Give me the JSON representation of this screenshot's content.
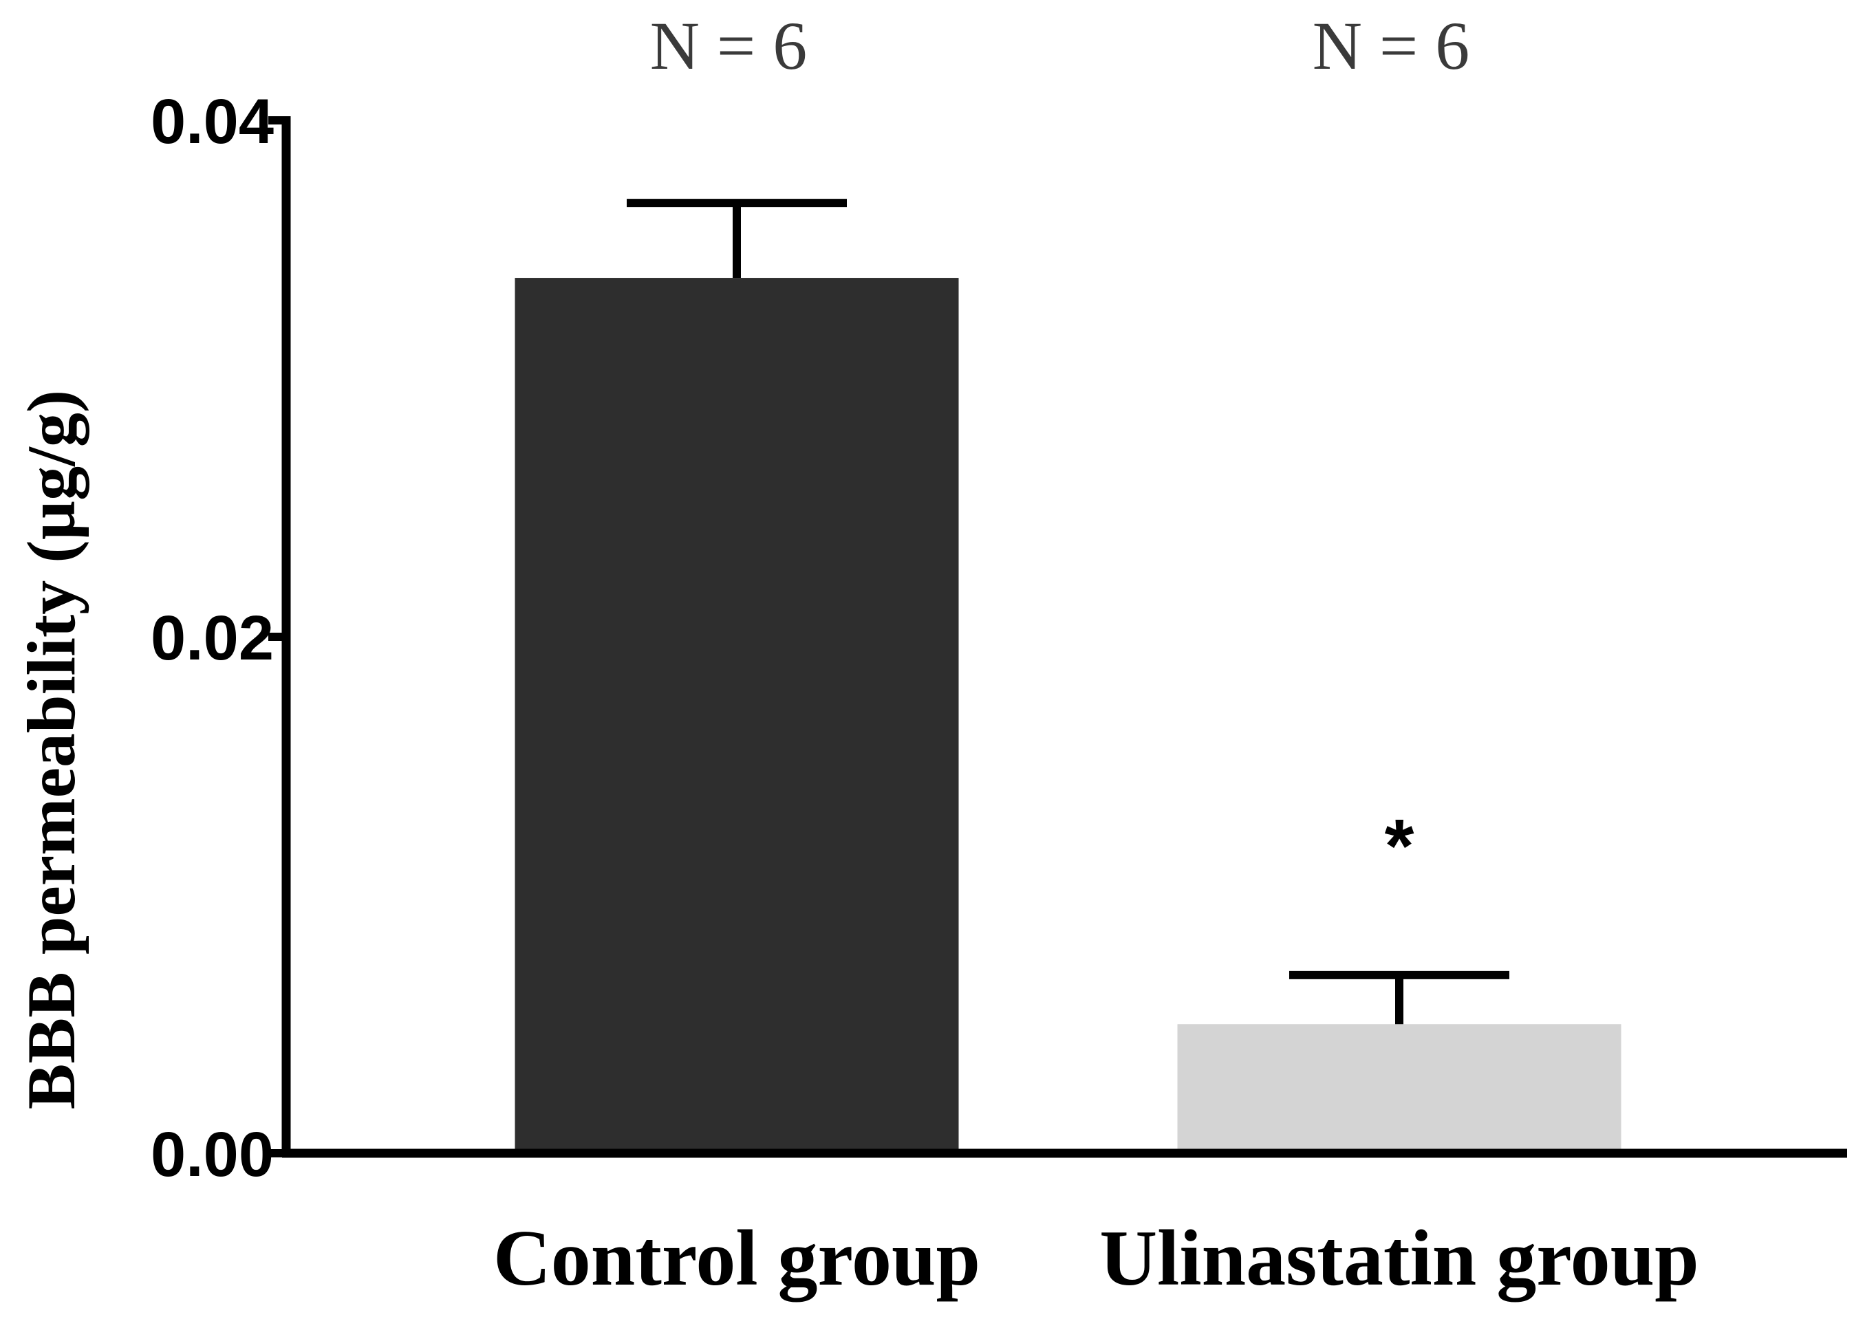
{
  "chart_data": {
    "type": "bar",
    "title": "",
    "xlabel": "",
    "ylabel": "BBB permeability (µg/g)",
    "ylim": [
      0,
      0.04
    ],
    "yticks": [
      "0.00",
      "0.02",
      "0.04"
    ],
    "ytick_values": [
      0,
      0.02,
      0.04
    ],
    "grid": false,
    "categories": [
      "Control group",
      "Ulinastatin group"
    ],
    "values": [
      0.0339,
      0.005
    ],
    "errors": [
      0.0029,
      0.0019
    ],
    "colors": [
      "#2e2e2e",
      "#d4d4d4"
    ],
    "sample_sizes": [
      "N = 6",
      "N = 6"
    ],
    "annotations": [
      "",
      "*"
    ]
  }
}
